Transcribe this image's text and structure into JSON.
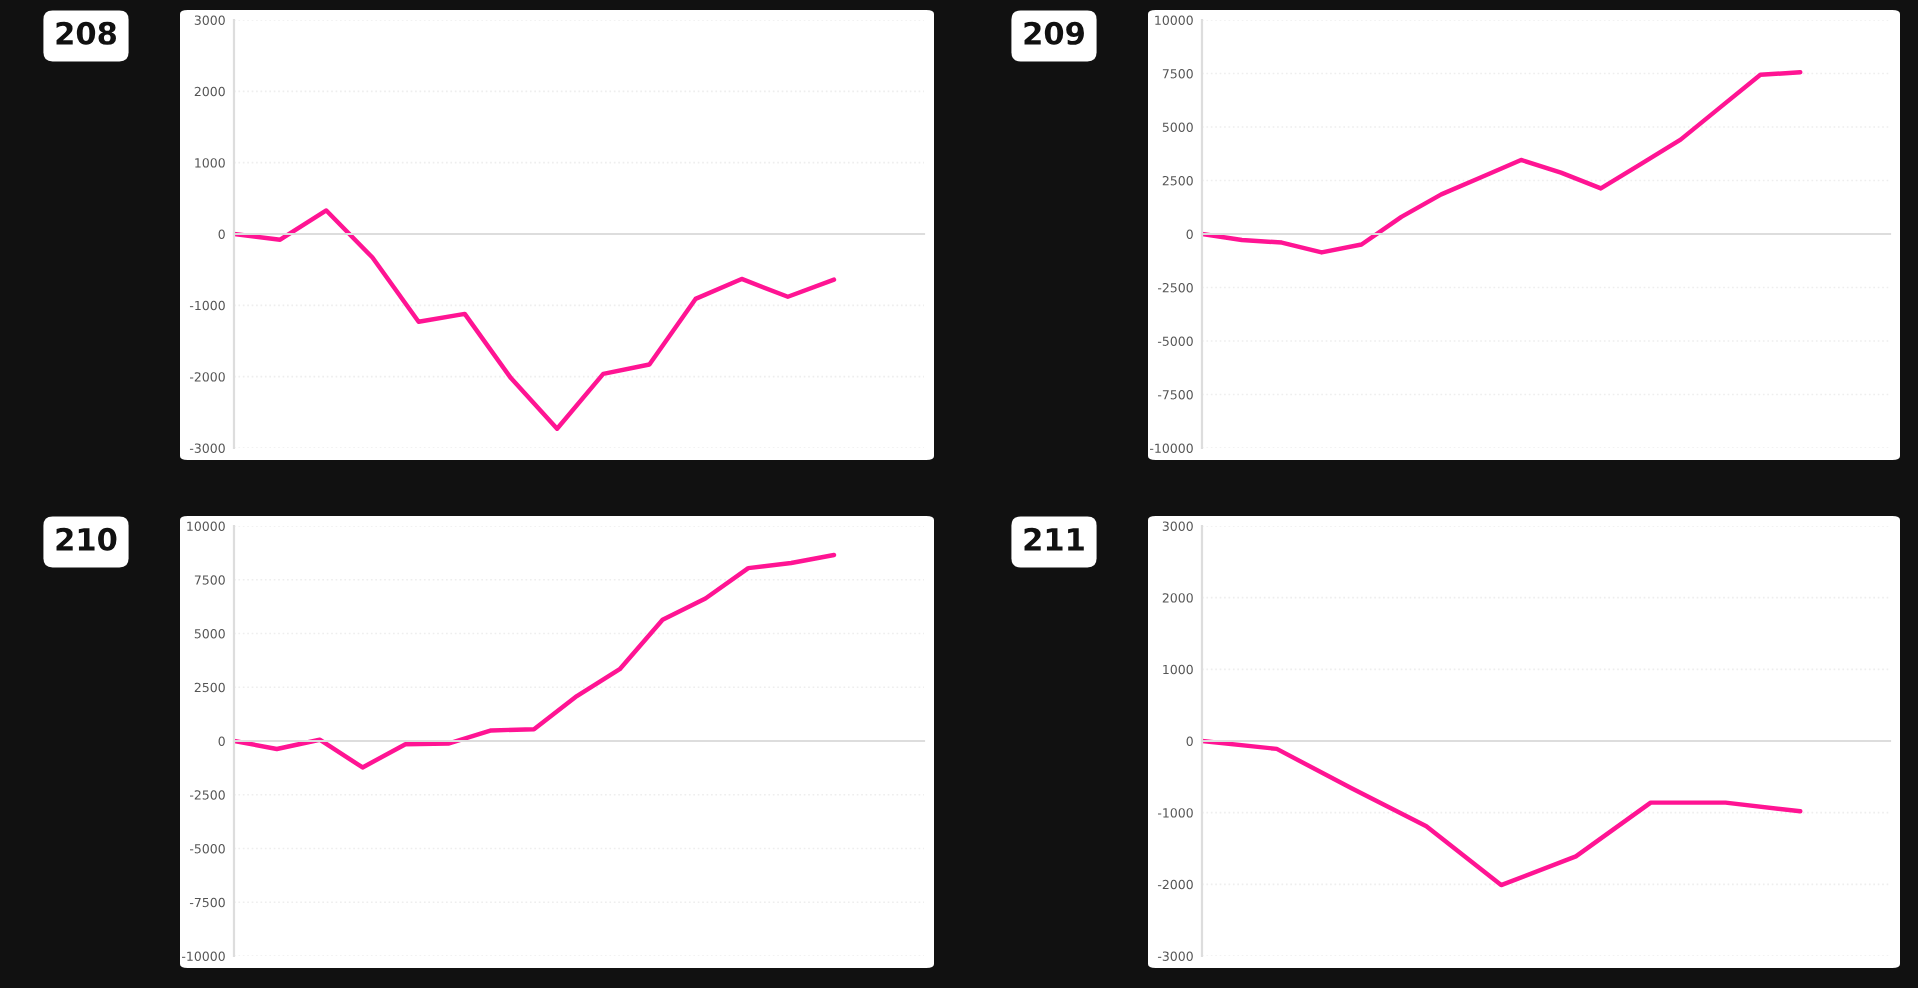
{
  "chart_data": [
    {
      "type": "line",
      "title": "208",
      "categories": [
        null,
        null,
        null,
        null,
        null,
        null,
        null,
        null,
        null,
        null,
        null,
        null,
        null,
        null
      ],
      "series": [
        {
          "color": "#ff1493",
          "values": [
            0,
            -80,
            330,
            -330,
            -1230,
            -1120,
            -2020,
            -2730,
            -1960,
            -1830,
            -910,
            -630,
            -880,
            -640
          ]
        }
      ],
      "ylim": [
        -3000,
        3000
      ],
      "yticks": [
        -3000,
        -2000,
        -1000,
        0,
        1000,
        2000,
        3000
      ],
      "grid": "y",
      "marker": "none",
      "line_style": "solid"
    },
    {
      "type": "line",
      "title": "209",
      "categories": [
        null,
        null,
        null,
        null,
        null,
        null,
        null,
        null,
        null,
        null,
        null,
        null,
        null,
        null,
        null,
        null
      ],
      "series": [
        {
          "color": "#ff1493",
          "values": [
            0,
            -280,
            -400,
            -860,
            -490,
            800,
            1850,
            2650,
            3460,
            2870,
            2130,
            3270,
            4410,
            5930,
            7440,
            7560
          ]
        }
      ],
      "ylim": [
        -10000,
        10000
      ],
      "yticks": [
        -10000,
        -7500,
        -5000,
        -2500,
        0,
        2500,
        5000,
        7500,
        10000
      ],
      "grid": "y",
      "marker": "none",
      "line_style": "solid"
    },
    {
      "type": "line",
      "title": "210",
      "categories": [
        null,
        null,
        null,
        null,
        null,
        null,
        null,
        null,
        null,
        null,
        null,
        null,
        null,
        null,
        null
      ],
      "series": [
        {
          "color": "#ff1493",
          "values": [
            0,
            -370,
            60,
            -1230,
            -150,
            -120,
            490,
            550,
            2090,
            3340,
            5640,
            6630,
            8040,
            8280,
            8650
          ]
        }
      ],
      "ylim": [
        -10000,
        10000
      ],
      "yticks": [
        -10000,
        -7500,
        -5000,
        -2500,
        0,
        2500,
        5000,
        7500,
        10000
      ],
      "grid": "y",
      "marker": "none",
      "line_style": "solid"
    },
    {
      "type": "line",
      "title": "211",
      "categories": [
        null,
        null,
        null,
        null,
        null,
        null,
        null,
        null,
        null
      ],
      "series": [
        {
          "color": "#ff1493",
          "values": [
            0,
            -110,
            -660,
            -1190,
            -2010,
            -1610,
            -860,
            -860,
            -980
          ]
        }
      ],
      "ylim": [
        -3000,
        3000
      ],
      "yticks": [
        -3000,
        -2000,
        -1000,
        0,
        1000,
        2000,
        3000
      ],
      "grid": "y",
      "marker": "none",
      "line_style": "solid"
    }
  ]
}
